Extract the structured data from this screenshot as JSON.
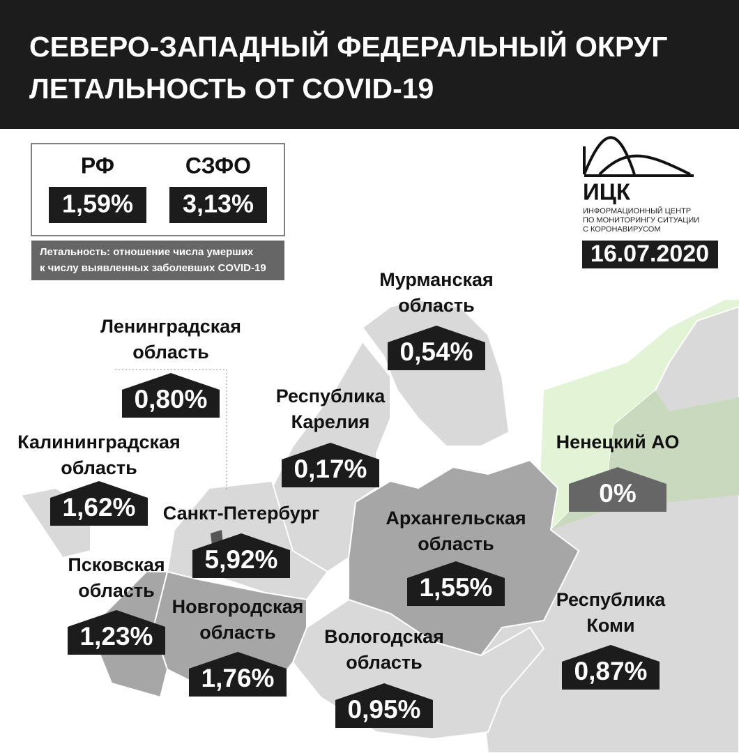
{
  "header": {
    "title_lines": [
      "СЕВЕРО-ЗАПАДНЫЙ ФЕДЕРАЛЬНЫЙ ОКРУГ",
      "ЛЕТАЛЬНОСТЬ ОТ COVID-19"
    ]
  },
  "summary": [
    {
      "label": "РФ",
      "value": "1,59%"
    },
    {
      "label": "СЗФО",
      "value": "3,13%"
    }
  ],
  "note_lines": [
    "Летальность: отношение числа умерших",
    "к числу выявленных заболевших COVID-19"
  ],
  "logo": {
    "name": "ИЦК",
    "lines": [
      "ИНФОРМАЦИОННЫЙ ЦЕНТР",
      "ПО МОНИТОРИНГУ СИТУАЦИИ",
      "С КОРОНАВИРУСОМ"
    ]
  },
  "date": "16.07.2020",
  "regions": [
    {
      "name_lines": [
        "Мурманская",
        "область"
      ],
      "value": "0,54%"
    },
    {
      "name_lines": [
        "Ленинградская",
        "область"
      ],
      "value": "0,80%"
    },
    {
      "name_lines": [
        "Республика",
        "Карелия"
      ],
      "value": "0,17%"
    },
    {
      "name_lines": [
        "Калининградская",
        "область"
      ],
      "value": "1,62%"
    },
    {
      "name_lines": [
        "Ненецкий АО"
      ],
      "value": "0%"
    },
    {
      "name_lines": [
        "Санкт-Петербург"
      ],
      "value": "5,92%"
    },
    {
      "name_lines": [
        "Архангельская",
        "область"
      ],
      "value": "1,55%"
    },
    {
      "name_lines": [
        "Псковская",
        "область"
      ],
      "value": "1,23%"
    },
    {
      "name_lines": [
        "Новгородская",
        "область"
      ],
      "value": "1,76%"
    },
    {
      "name_lines": [
        "Вологодская",
        "область"
      ],
      "value": "0,95%"
    },
    {
      "name_lines": [
        "Республика",
        "Коми"
      ],
      "value": "0,87%"
    }
  ]
}
